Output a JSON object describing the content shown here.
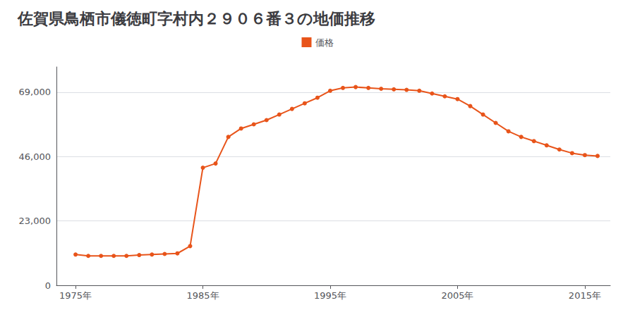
{
  "chart_data": {
    "type": "line",
    "title": "佐賀県鳥栖市儀徳町字村内２９０６番３の地価推移",
    "x": [
      1975,
      1976,
      1977,
      1978,
      1979,
      1980,
      1981,
      1982,
      1983,
      1984,
      1985,
      1986,
      1987,
      1988,
      1989,
      1990,
      1991,
      1992,
      1993,
      1994,
      1995,
      1996,
      1997,
      1998,
      1999,
      2000,
      2001,
      2002,
      2003,
      2004,
      2005,
      2006,
      2007,
      2008,
      2009,
      2010,
      2011,
      2012,
      2013,
      2014,
      2015,
      2016
    ],
    "series": [
      {
        "name": "価格",
        "color": "#e8541a",
        "values": [
          11000,
          10500,
          10500,
          10500,
          10500,
          10800,
          11000,
          11200,
          11400,
          14000,
          42000,
          43500,
          53000,
          56000,
          57500,
          59000,
          61000,
          63000,
          65000,
          67000,
          69500,
          70500,
          70800,
          70500,
          70200,
          70000,
          69800,
          69500,
          68500,
          67500,
          66500,
          64000,
          61000,
          58000,
          55000,
          53000,
          51500,
          50000,
          48500,
          47200,
          46500,
          46200
        ]
      }
    ],
    "xlim": [
      1973.5,
      2017
    ],
    "ylim": [
      0,
      78000
    ],
    "xticks": [
      {
        "value": 1975,
        "label": "1975年"
      },
      {
        "value": 1985,
        "label": "1985年"
      },
      {
        "value": 1995,
        "label": "1995年"
      },
      {
        "value": 2005,
        "label": "2005年"
      },
      {
        "value": 2015,
        "label": "2015年"
      }
    ],
    "yticks": [
      0,
      {
        "value": 23000,
        "label": "23,000"
      },
      {
        "value": 46000,
        "label": "46,000"
      },
      {
        "value": 69000,
        "label": "69,000"
      }
    ],
    "grid": true,
    "legend": "top",
    "marker": "circle"
  }
}
